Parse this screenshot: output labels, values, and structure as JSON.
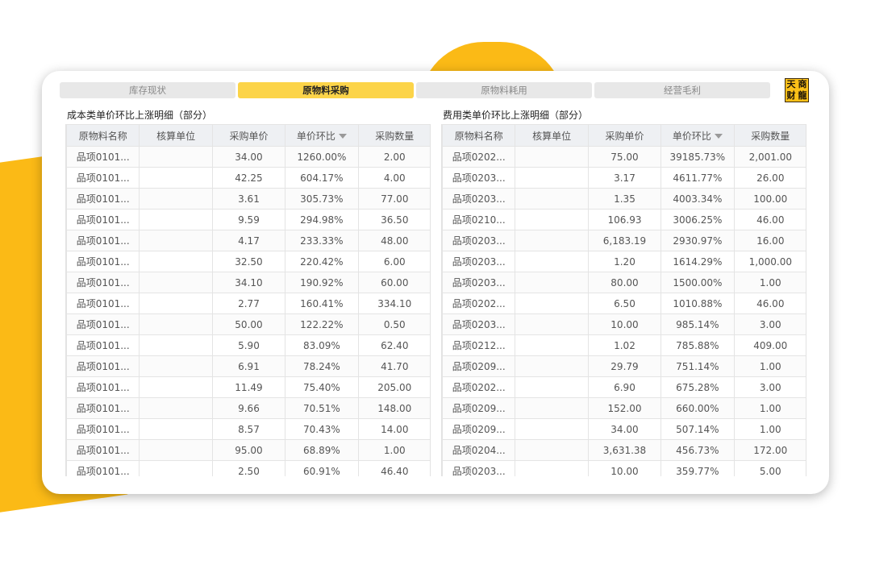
{
  "colors": {
    "accent": "#FBBA16",
    "tab_active": "#FCD449",
    "tab_inactive": "#E8E8E8"
  },
  "logo": {
    "chars": [
      "天",
      "商",
      "财",
      "龍"
    ]
  },
  "tabs": [
    {
      "label": "库存现状",
      "active": false
    },
    {
      "label": "原物料采购",
      "active": true
    },
    {
      "label": "原物料耗用",
      "active": false
    },
    {
      "label": "经营毛利",
      "active": false
    }
  ],
  "left_table": {
    "title": "成本类单价环比上涨明细（部分）",
    "columns": [
      "原物料名称",
      "核算单位",
      "采购单价",
      "单价环比",
      "采购数量"
    ],
    "sorted_column": 3,
    "rows": [
      [
        "品项0101...",
        "",
        "34.00",
        "1260.00%",
        "2.00"
      ],
      [
        "品项0101...",
        "",
        "42.25",
        "604.17%",
        "4.00"
      ],
      [
        "品项0101...",
        "",
        "3.61",
        "305.73%",
        "77.00"
      ],
      [
        "品项0101...",
        "",
        "9.59",
        "294.98%",
        "36.50"
      ],
      [
        "品项0101...",
        "",
        "4.17",
        "233.33%",
        "48.00"
      ],
      [
        "品项0101...",
        "",
        "32.50",
        "220.42%",
        "6.00"
      ],
      [
        "品项0101...",
        "",
        "34.10",
        "190.92%",
        "60.00"
      ],
      [
        "品项0101...",
        "",
        "2.77",
        "160.41%",
        "334.10"
      ],
      [
        "品项0101...",
        "",
        "50.00",
        "122.22%",
        "0.50"
      ],
      [
        "品项0101...",
        "",
        "5.90",
        "83.09%",
        "62.40"
      ],
      [
        "品项0101...",
        "",
        "6.91",
        "78.24%",
        "41.70"
      ],
      [
        "品项0101...",
        "",
        "11.49",
        "75.40%",
        "205.00"
      ],
      [
        "品项0101...",
        "",
        "9.66",
        "70.51%",
        "148.00"
      ],
      [
        "品项0101...",
        "",
        "8.57",
        "70.43%",
        "14.00"
      ],
      [
        "品项0101...",
        "",
        "95.00",
        "68.89%",
        "1.00"
      ],
      [
        "品项0101...",
        "",
        "2.50",
        "60.91%",
        "46.40"
      ]
    ]
  },
  "right_table": {
    "title": "费用类单价环比上涨明细（部分）",
    "columns": [
      "原物料名称",
      "核算单位",
      "采购单价",
      "单价环比",
      "采购数量"
    ],
    "sorted_column": 3,
    "rows": [
      [
        "品项0202...",
        "",
        "75.00",
        "39185.73%",
        "2,001.00"
      ],
      [
        "品项0203...",
        "",
        "3.17",
        "4611.77%",
        "26.00"
      ],
      [
        "品项0203...",
        "",
        "1.35",
        "4003.34%",
        "100.00"
      ],
      [
        "品项0210...",
        "",
        "106.93",
        "3006.25%",
        "46.00"
      ],
      [
        "品项0203...",
        "",
        "6,183.19",
        "2930.97%",
        "16.00"
      ],
      [
        "品项0203...",
        "",
        "1.20",
        "1614.29%",
        "1,000.00"
      ],
      [
        "品项0203...",
        "",
        "80.00",
        "1500.00%",
        "1.00"
      ],
      [
        "品项0202...",
        "",
        "6.50",
        "1010.88%",
        "46.00"
      ],
      [
        "品项0203...",
        "",
        "10.00",
        "985.14%",
        "3.00"
      ],
      [
        "品项0212...",
        "",
        "1.02",
        "785.88%",
        "409.00"
      ],
      [
        "品项0209...",
        "",
        "29.79",
        "751.14%",
        "1.00"
      ],
      [
        "品项0202...",
        "",
        "6.90",
        "675.28%",
        "3.00"
      ],
      [
        "品项0209...",
        "",
        "152.00",
        "660.00%",
        "1.00"
      ],
      [
        "品项0209...",
        "",
        "34.00",
        "507.14%",
        "1.00"
      ],
      [
        "品项0204...",
        "",
        "3,631.38",
        "456.73%",
        "172.00"
      ],
      [
        "品项0203...",
        "",
        "10.00",
        "359.77%",
        "5.00"
      ]
    ]
  }
}
